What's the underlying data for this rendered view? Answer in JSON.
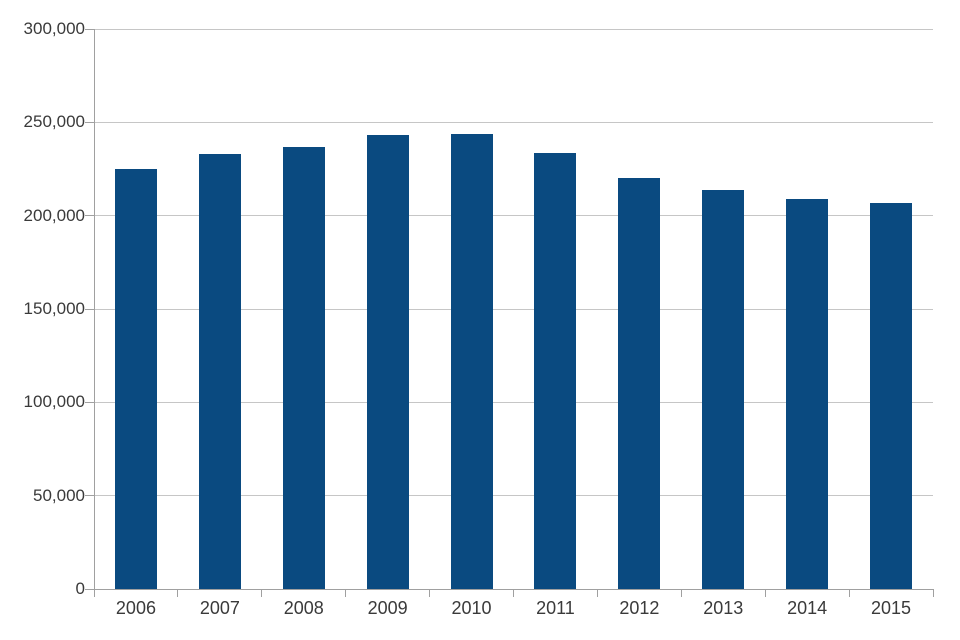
{
  "chart_data": {
    "type": "bar",
    "title": "",
    "xlabel": "",
    "ylabel": "",
    "categories": [
      "2006",
      "2007",
      "2008",
      "2009",
      "2010",
      "2011",
      "2012",
      "2013",
      "2014",
      "2015"
    ],
    "values": [
      225000,
      233000,
      237000,
      243000,
      244000,
      233500,
      220000,
      214000,
      209000,
      207000
    ],
    "ylim": [
      0,
      300000
    ],
    "ytick_interval": 50000,
    "ytick_values": [
      0,
      50000,
      100000,
      150000,
      200000,
      250000,
      300000
    ],
    "ytick_labels": [
      "0",
      "50,000",
      "100,000",
      "150,000",
      "200,000",
      "250,000",
      "300,000"
    ],
    "grid": "horizontal-only",
    "legend": "none",
    "colors": {
      "bar": "#0a4a80",
      "gridline": "#c6c6c6",
      "axis": "#a0a0a0",
      "label_text": "#3a3a3a",
      "background": "#ffffff"
    }
  }
}
